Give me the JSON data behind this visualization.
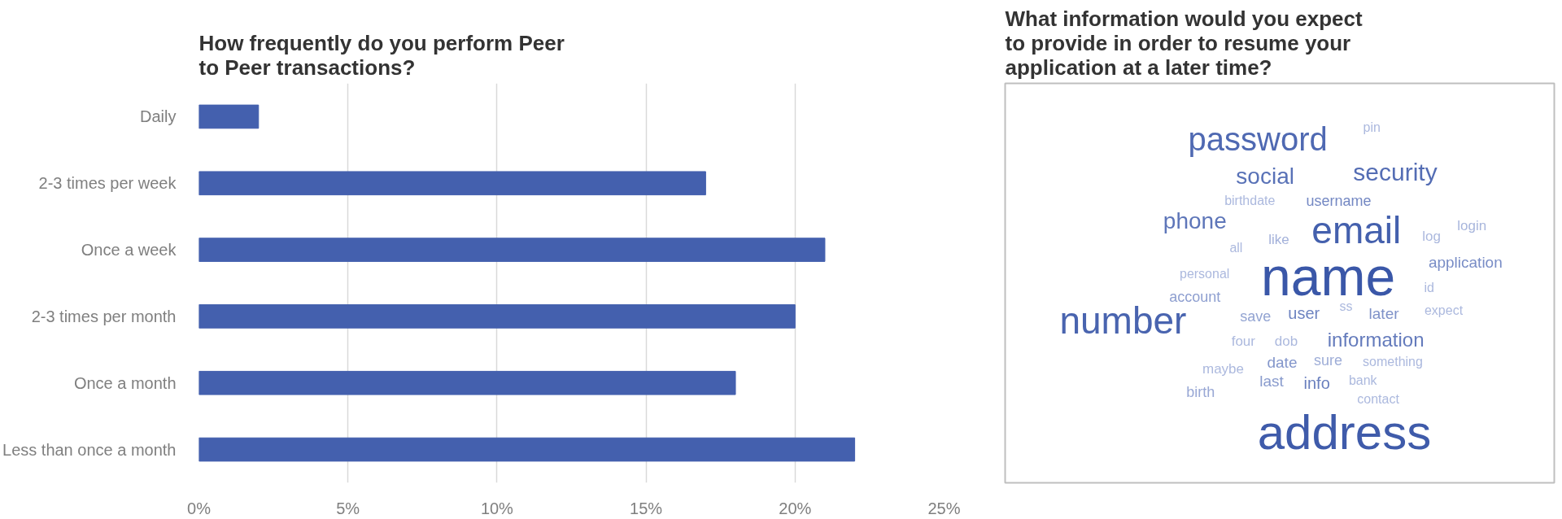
{
  "chart_data": [
    {
      "type": "bar",
      "orientation": "horizontal",
      "title": "How frequently do you perform Peer to Peer transactions?",
      "categories": [
        "Daily",
        "2-3 times per week",
        "Once a week",
        "2-3 times per month",
        "Once a month",
        "Less than once a month"
      ],
      "values": [
        2,
        17,
        21,
        20,
        18,
        22
      ],
      "color": "#4460ae",
      "xlim": [
        0,
        25
      ],
      "xticks": [
        {
          "value": 0,
          "label": "0%"
        },
        {
          "value": 5,
          "label": "5%"
        },
        {
          "value": 10,
          "label": "10%"
        },
        {
          "value": 15,
          "label": "15%"
        },
        {
          "value": 20,
          "label": "20%"
        },
        {
          "value": 25,
          "label": "25%"
        }
      ],
      "grid": "x"
    },
    {
      "type": "other",
      "title": "What information would you expect to provide in order to resume your application at a later time?",
      "annotations": [
        "name",
        "address",
        "email",
        "number",
        "password",
        "security",
        "social",
        "phone",
        "information",
        "info",
        "user",
        "username",
        "application",
        "later",
        "date",
        "last",
        "account",
        "save",
        "birth",
        "sure",
        "like",
        "login",
        "log",
        "four",
        "dob",
        "maybe",
        "pin",
        "birthdate",
        "all",
        "personal",
        "id",
        "ss",
        "expect",
        "something",
        "bank",
        "contact"
      ]
    }
  ]
}
